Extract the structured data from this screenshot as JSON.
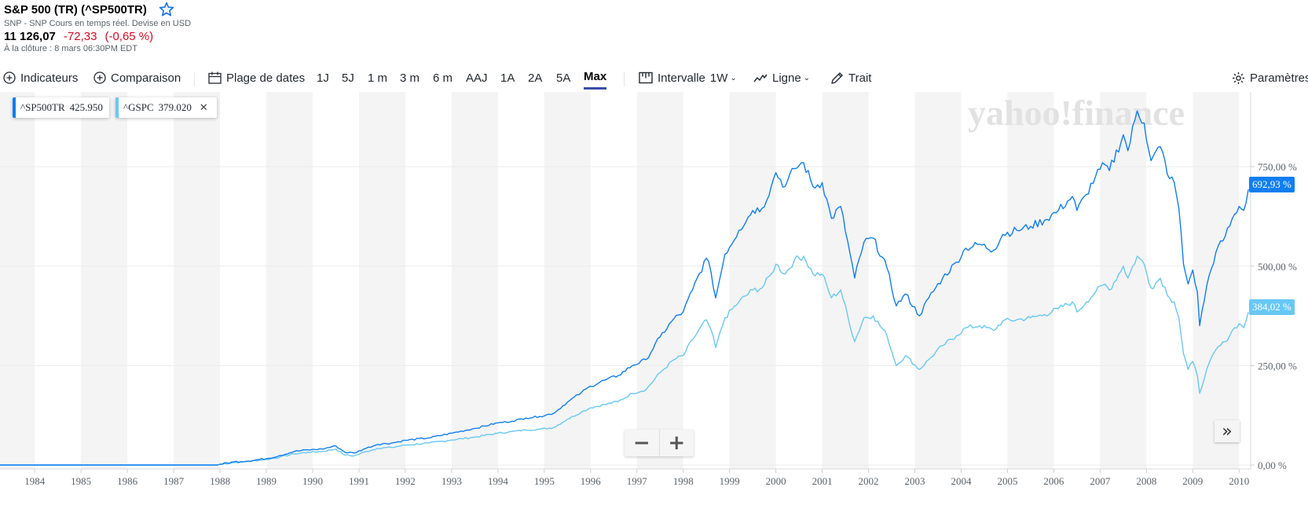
{
  "header": {
    "title": "S&P 500 (TR) (^SP500TR)",
    "subtitle": "SNP - SNP Cours en temps réel. Devise en USD",
    "price": "11 126,07",
    "change": "-72,33",
    "change_pct": "(-0,65 %)",
    "close_time": "À la clôture : 8 mars 06:30PM EDT"
  },
  "toolbar": {
    "indicators": "Indicateurs",
    "comparison": "Comparaison",
    "date_range": "Plage de dates",
    "ranges": [
      "1J",
      "5J",
      "1 m",
      "3 m",
      "6 m",
      "AAJ",
      "1A",
      "2A",
      "5A",
      "Max"
    ],
    "active_range": "Max",
    "interval_label": "Intervalle",
    "interval_value": "1W",
    "chart_type": "Ligne",
    "draw": "Trait",
    "settings": "Paramètres"
  },
  "legend": [
    {
      "symbol": "^SP500TR",
      "value": "425.950",
      "color": "#0f7ef1"
    },
    {
      "symbol": "^GSPC",
      "value": "379.020",
      "color": "#68c8f5"
    }
  ],
  "watermark": "yahoo!finance",
  "last_tags": [
    {
      "text": "692,93 %",
      "color": "#0f7ef1"
    },
    {
      "text": "384,02 %",
      "color": "#68c8f5"
    }
  ],
  "zoom": {
    "minus": "−",
    "plus": "+"
  },
  "expand_icon": "»",
  "chart_data": {
    "type": "line",
    "x_ticks": [
      "1984",
      "1985",
      "1986",
      "1987",
      "1988",
      "1989",
      "1990",
      "1991",
      "1992",
      "1993",
      "1994",
      "1995",
      "1996",
      "1997",
      "1998",
      "1999",
      "2000",
      "2001",
      "2002",
      "2003",
      "2004",
      "2005",
      "2006",
      "2007",
      "2008",
      "2009",
      "2010"
    ],
    "x_range": [
      1983.25,
      2010.25
    ],
    "ylim": [
      -2,
      930
    ],
    "y_ticks": [
      {
        "value": 0,
        "label": "0,00 %"
      },
      {
        "value": 250,
        "label": "250,00 %"
      },
      {
        "value": 500,
        "label": "500,00 %"
      },
      {
        "value": 750,
        "label": "750,00 %"
      }
    ],
    "grid": true,
    "series": [
      {
        "name": "^SP500TR",
        "color": "#0f7ef1",
        "points": [
          [
            1983.25,
            0
          ],
          [
            1987.95,
            0
          ],
          [
            1988.0,
            2
          ],
          [
            1988.3,
            8
          ],
          [
            1988.6,
            10
          ],
          [
            1989.0,
            16
          ],
          [
            1989.3,
            24
          ],
          [
            1989.6,
            34
          ],
          [
            1989.9,
            38
          ],
          [
            1990.2,
            40
          ],
          [
            1990.5,
            48
          ],
          [
            1990.7,
            32
          ],
          [
            1990.9,
            30
          ],
          [
            1991.1,
            40
          ],
          [
            1991.4,
            52
          ],
          [
            1991.7,
            55
          ],
          [
            1992.0,
            62
          ],
          [
            1992.5,
            68
          ],
          [
            1993.0,
            80
          ],
          [
            1993.5,
            92
          ],
          [
            1994.0,
            106
          ],
          [
            1994.3,
            110
          ],
          [
            1994.6,
            118
          ],
          [
            1994.9,
            122
          ],
          [
            1995.2,
            130
          ],
          [
            1995.5,
            158
          ],
          [
            1995.8,
            182
          ],
          [
            1996.0,
            198
          ],
          [
            1996.3,
            213
          ],
          [
            1996.6,
            225
          ],
          [
            1996.9,
            250
          ],
          [
            1997.2,
            265
          ],
          [
            1997.5,
            322
          ],
          [
            1997.8,
            368
          ],
          [
            1998.0,
            385
          ],
          [
            1998.2,
            440
          ],
          [
            1998.5,
            520
          ],
          [
            1998.6,
            485
          ],
          [
            1998.7,
            420
          ],
          [
            1998.9,
            530
          ],
          [
            1999.2,
            590
          ],
          [
            1999.5,
            640
          ],
          [
            1999.7,
            645
          ],
          [
            1999.9,
            700
          ],
          [
            2000.0,
            735
          ],
          [
            2000.2,
            700
          ],
          [
            2000.4,
            745
          ],
          [
            2000.6,
            760
          ],
          [
            2000.8,
            700
          ],
          [
            2001.0,
            710
          ],
          [
            2001.2,
            620
          ],
          [
            2001.4,
            650
          ],
          [
            2001.7,
            470
          ],
          [
            2001.9,
            560
          ],
          [
            2002.1,
            570
          ],
          [
            2002.4,
            495
          ],
          [
            2002.6,
            400
          ],
          [
            2002.8,
            430
          ],
          [
            2003.1,
            375
          ],
          [
            2003.3,
            420
          ],
          [
            2003.6,
            470
          ],
          [
            2003.9,
            510
          ],
          [
            2004.1,
            545
          ],
          [
            2004.4,
            555
          ],
          [
            2004.7,
            540
          ],
          [
            2004.9,
            580
          ],
          [
            2005.2,
            590
          ],
          [
            2005.5,
            600
          ],
          [
            2005.8,
            615
          ],
          [
            2006.1,
            640
          ],
          [
            2006.4,
            675
          ],
          [
            2006.5,
            640
          ],
          [
            2006.7,
            680
          ],
          [
            2006.9,
            725
          ],
          [
            2007.1,
            755
          ],
          [
            2007.2,
            740
          ],
          [
            2007.5,
            830
          ],
          [
            2007.6,
            790
          ],
          [
            2007.8,
            890
          ],
          [
            2007.95,
            860
          ],
          [
            2008.1,
            765
          ],
          [
            2008.3,
            800
          ],
          [
            2008.5,
            720
          ],
          [
            2008.6,
            710
          ],
          [
            2008.7,
            645
          ],
          [
            2008.8,
            505
          ],
          [
            2008.9,
            455
          ],
          [
            2009.0,
            490
          ],
          [
            2009.1,
            435
          ],
          [
            2009.15,
            350
          ],
          [
            2009.3,
            450
          ],
          [
            2009.5,
            535
          ],
          [
            2009.7,
            575
          ],
          [
            2009.9,
            630
          ],
          [
            2010.0,
            650
          ],
          [
            2010.1,
            640
          ],
          [
            2010.2,
            693
          ]
        ]
      },
      {
        "name": "^GSPC",
        "color": "#68c8f5",
        "points": [
          [
            1983.25,
            0
          ],
          [
            1987.95,
            0
          ],
          [
            1988.0,
            2
          ],
          [
            1988.3,
            6
          ],
          [
            1988.6,
            9
          ],
          [
            1989.0,
            14
          ],
          [
            1989.3,
            20
          ],
          [
            1989.6,
            28
          ],
          [
            1989.9,
            32
          ],
          [
            1990.2,
            34
          ],
          [
            1990.5,
            40
          ],
          [
            1990.7,
            25
          ],
          [
            1990.9,
            23
          ],
          [
            1991.1,
            32
          ],
          [
            1991.4,
            42
          ],
          [
            1991.7,
            44
          ],
          [
            1992.0,
            50
          ],
          [
            1992.5,
            55
          ],
          [
            1993.0,
            63
          ],
          [
            1993.5,
            70
          ],
          [
            1994.0,
            80
          ],
          [
            1994.3,
            84
          ],
          [
            1994.6,
            88
          ],
          [
            1994.9,
            90
          ],
          [
            1995.2,
            94
          ],
          [
            1995.5,
            115
          ],
          [
            1995.8,
            133
          ],
          [
            1996.0,
            144
          ],
          [
            1996.3,
            152
          ],
          [
            1996.6,
            160
          ],
          [
            1996.9,
            180
          ],
          [
            1997.2,
            190
          ],
          [
            1997.5,
            232
          ],
          [
            1997.8,
            265
          ],
          [
            1998.0,
            275
          ],
          [
            1998.2,
            315
          ],
          [
            1998.5,
            365
          ],
          [
            1998.6,
            340
          ],
          [
            1998.7,
            295
          ],
          [
            1998.9,
            370
          ],
          [
            1999.2,
            410
          ],
          [
            1999.5,
            440
          ],
          [
            1999.7,
            445
          ],
          [
            1999.9,
            480
          ],
          [
            2000.0,
            505
          ],
          [
            2000.2,
            480
          ],
          [
            2000.4,
            515
          ],
          [
            2000.6,
            525
          ],
          [
            2000.8,
            480
          ],
          [
            2001.0,
            480
          ],
          [
            2001.2,
            420
          ],
          [
            2001.4,
            440
          ],
          [
            2001.7,
            310
          ],
          [
            2001.9,
            370
          ],
          [
            2002.1,
            375
          ],
          [
            2002.4,
            325
          ],
          [
            2002.6,
            250
          ],
          [
            2002.8,
            275
          ],
          [
            2003.1,
            240
          ],
          [
            2003.3,
            265
          ],
          [
            2003.6,
            300
          ],
          [
            2003.9,
            325
          ],
          [
            2004.1,
            345
          ],
          [
            2004.4,
            350
          ],
          [
            2004.7,
            338
          ],
          [
            2004.9,
            362
          ],
          [
            2005.2,
            365
          ],
          [
            2005.5,
            370
          ],
          [
            2005.8,
            378
          ],
          [
            2006.1,
            393
          ],
          [
            2006.4,
            410
          ],
          [
            2006.5,
            385
          ],
          [
            2006.7,
            410
          ],
          [
            2006.9,
            435
          ],
          [
            2007.1,
            455
          ],
          [
            2007.2,
            440
          ],
          [
            2007.5,
            500
          ],
          [
            2007.6,
            470
          ],
          [
            2007.8,
            525
          ],
          [
            2007.95,
            505
          ],
          [
            2008.1,
            445
          ],
          [
            2008.3,
            470
          ],
          [
            2008.5,
            420
          ],
          [
            2008.6,
            410
          ],
          [
            2008.7,
            370
          ],
          [
            2008.8,
            280
          ],
          [
            2008.9,
            240
          ],
          [
            2009.0,
            260
          ],
          [
            2009.1,
            225
          ],
          [
            2009.15,
            180
          ],
          [
            2009.3,
            240
          ],
          [
            2009.5,
            290
          ],
          [
            2009.7,
            310
          ],
          [
            2009.9,
            345
          ],
          [
            2010.0,
            355
          ],
          [
            2010.1,
            345
          ],
          [
            2010.2,
            384
          ]
        ]
      }
    ]
  }
}
